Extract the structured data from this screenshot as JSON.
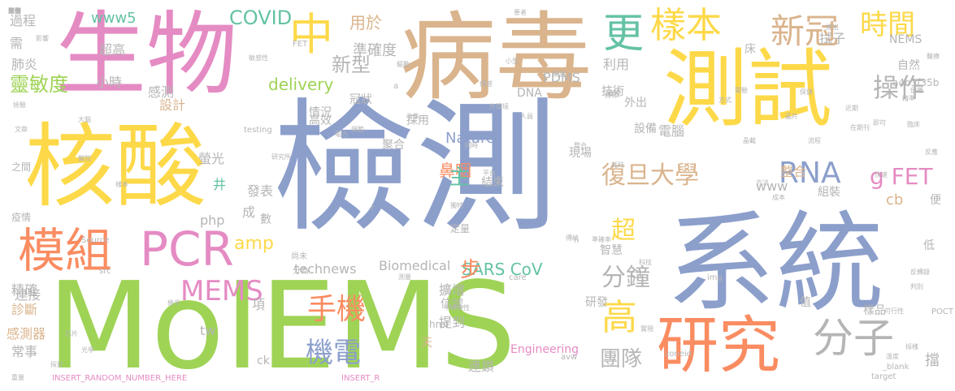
{
  "palette": {
    "green": "#9fd356",
    "blue": "#8c9fcb",
    "pink": "#e58bc3",
    "tan": "#dab48d",
    "yellow": "#fdd949",
    "orange": "#fa8c61",
    "teal": "#64c2a5",
    "grey": "#b5b5b5"
  },
  "words": [
    {
      "text": "MoIEMS",
      "color": "green"
    },
    {
      "text": "檢測",
      "color": "blue"
    },
    {
      "text": "系統",
      "color": "blue"
    },
    {
      "text": "病毒",
      "color": "tan"
    },
    {
      "text": "生物",
      "color": "pink"
    },
    {
      "text": "核酸",
      "color": "yellow"
    },
    {
      "text": "測試",
      "color": "yellow"
    },
    {
      "text": "研究",
      "color": "orange"
    },
    {
      "text": "模組",
      "color": "orange"
    },
    {
      "text": "PCR",
      "color": "pink"
    },
    {
      "text": "中",
      "color": "yellow"
    },
    {
      "text": "更",
      "color": "teal"
    },
    {
      "text": "樣本",
      "color": "yellow"
    },
    {
      "text": "新冠",
      "color": "tan"
    },
    {
      "text": "時間",
      "color": "yellow"
    },
    {
      "text": "分子",
      "color": "grey"
    },
    {
      "text": "高",
      "color": "yellow"
    },
    {
      "text": "MEMS",
      "color": "pink"
    },
    {
      "text": "手機",
      "color": "orange"
    },
    {
      "text": "機電",
      "color": "blue"
    },
    {
      "text": "復旦大學",
      "color": "tan"
    },
    {
      "text": "RNA",
      "color": "blue"
    },
    {
      "text": "g FET",
      "color": "pink"
    },
    {
      "text": "分鐘",
      "color": "grey"
    },
    {
      "text": "操作",
      "color": "grey"
    },
    {
      "text": "靈敏度",
      "color": "green"
    },
    {
      "text": "新型",
      "color": "grey"
    },
    {
      "text": "準確度",
      "color": "grey"
    },
    {
      "text": "用於",
      "color": "tan"
    },
    {
      "text": "COVID",
      "color": "teal"
    },
    {
      "text": "www5",
      "color": "teal"
    },
    {
      "text": "delivery",
      "color": "green"
    },
    {
      "text": "團隊",
      "color": "grey"
    },
    {
      "text": "超",
      "color": "yellow"
    },
    {
      "text": "SARS CoV",
      "color": "teal"
    },
    {
      "text": "Nature",
      "color": "blue"
    },
    {
      "text": "Biomedical",
      "color": "grey"
    },
    {
      "text": "technews",
      "color": "grey"
    },
    {
      "text": "amp",
      "color": "yellow"
    },
    {
      "text": "鼻咽",
      "color": "orange"
    },
    {
      "text": "主",
      "color": "teal"
    },
    {
      "text": "步",
      "color": "orange"
    },
    {
      "text": "tw",
      "color": "grey"
    },
    {
      "text": "www",
      "color": "grey"
    },
    {
      "text": "php",
      "color": "grey"
    },
    {
      "text": "cb",
      "color": "tan"
    },
    {
      "text": "整合",
      "color": "tan"
    },
    {
      "text": "拭子",
      "color": "grey"
    },
    {
      "text": "PDMS",
      "color": "grey"
    },
    {
      "text": "利用",
      "color": "grey"
    },
    {
      "text": "小時",
      "color": "grey"
    },
    {
      "text": "感測",
      "color": "grey"
    },
    {
      "text": "設計",
      "color": "tan"
    },
    {
      "text": "精確",
      "color": "grey"
    },
    {
      "text": "診斷",
      "color": "tan"
    },
    {
      "text": "連接",
      "color": "grey"
    },
    {
      "text": "感測器",
      "color": "tan"
    },
    {
      "text": "Engineering",
      "color": "pink"
    },
    {
      "text": "電腦",
      "color": "grey"
    },
    {
      "text": "技術",
      "color": "grey"
    },
    {
      "text": "現場",
      "color": "grey"
    },
    {
      "text": "設備",
      "color": "grey"
    },
    {
      "text": "結束",
      "color": "grey"
    },
    {
      "text": "信號",
      "color": "grey"
    },
    {
      "text": "擴增",
      "color": "grey"
    },
    {
      "text": "提到",
      "color": "grey"
    },
    {
      "text": "研發",
      "color": "grey"
    },
    {
      "text": "組裝",
      "color": "grey"
    },
    {
      "text": "樣品",
      "color": "grey"
    },
    {
      "text": "自然",
      "color": "grey"
    },
    {
      "text": "NEMS",
      "color": "grey"
    },
    {
      "text": "a4b3f35b",
      "color": "grey"
    },
    {
      "text": "情況",
      "color": "grey"
    },
    {
      "text": "高效",
      "color": "grey"
    },
    {
      "text": "冠狀",
      "color": "grey"
    },
    {
      "text": "採用",
      "color": "grey"
    },
    {
      "text": "聚合",
      "color": "grey"
    },
    {
      "text": "DNA",
      "color": "grey"
    },
    {
      "text": "Ct",
      "color": "grey"
    },
    {
      "text": "過程",
      "color": "grey"
    },
    {
      "text": "需",
      "color": "grey"
    },
    {
      "text": "超高",
      "color": "grey"
    },
    {
      "text": "肺炎",
      "color": "grey"
    },
    {
      "text": "之間",
      "color": "grey"
    },
    {
      "text": "疫情",
      "color": "grey"
    },
    {
      "text": "常事",
      "color": "grey"
    },
    {
      "text": "井",
      "color": "teal"
    },
    {
      "text": "螢光",
      "color": "grey"
    },
    {
      "text": "發表",
      "color": "grey"
    },
    {
      "text": "成",
      "color": "grey"
    },
    {
      "text": "數",
      "color": "grey"
    },
    {
      "text": "床",
      "color": "grey"
    },
    {
      "text": "外出",
      "color": "grey"
    },
    {
      "text": "智慧",
      "color": "grey"
    },
    {
      "text": "值",
      "color": "grey"
    },
    {
      "text": "便",
      "color": "grey"
    },
    {
      "text": "低",
      "color": "grey"
    },
    {
      "text": "天",
      "color": "tan"
    },
    {
      "text": "項",
      "color": "grey"
    },
    {
      "text": "ck",
      "color": "grey"
    },
    {
      "text": "連鎖",
      "color": "grey"
    },
    {
      "text": "擋",
      "color": "grey"
    },
    {
      "text": "INSERT_RANDOM_NUMBER_HERE",
      "color": "pink"
    },
    {
      "text": "INSERT_R",
      "color": "pink"
    },
    {
      "text": "href",
      "color": "grey"
    },
    {
      "text": "定量",
      "color": "grey"
    },
    {
      "text": "尚未",
      "color": "grey"
    },
    {
      "text": "分為",
      "color": "grey"
    },
    {
      "text": "testing",
      "color": "grey"
    },
    {
      "text": "Source",
      "color": "grey"
    },
    {
      "text": "zoneid",
      "color": "grey"
    },
    {
      "text": "target",
      "color": "grey"
    },
    {
      "text": "_blank",
      "color": "grey"
    },
    {
      "text": "POCT",
      "color": "grey"
    },
    {
      "text": "img",
      "color": "grey"
    },
    {
      "text": "care",
      "color": "grey"
    },
    {
      "text": "src",
      "color": "grey"
    },
    {
      "text": "avw",
      "color": "grey"
    },
    {
      "text": "FET",
      "color": "grey"
    },
    {
      "text": "n",
      "color": "grey"
    },
    {
      "text": "r",
      "color": "grey"
    },
    {
      "text": "a",
      "color": "grey"
    },
    {
      "text": "重量",
      "color": "grey"
    },
    {
      "text": "臨床",
      "color": "grey"
    },
    {
      "text": "精準",
      "color": "grey"
    },
    {
      "text": "方法",
      "color": "grey"
    },
    {
      "text": "微型",
      "color": "grey"
    },
    {
      "text": "影響",
      "color": "grey"
    },
    {
      "text": "收集",
      "color": "grey"
    },
    {
      "text": "準確率",
      "color": "grey"
    },
    {
      "text": "傳統",
      "color": "grey"
    },
    {
      "text": "成本",
      "color": "grey"
    },
    {
      "text": "小型",
      "color": "grey"
    },
    {
      "text": "患者",
      "color": "grey"
    },
    {
      "text": "轉化",
      "color": "grey"
    },
    {
      "text": "反應",
      "color": "grey"
    },
    {
      "text": "流程",
      "color": "grey"
    },
    {
      "text": "人員",
      "color": "grey"
    },
    {
      "text": "醫療",
      "color": "grey"
    },
    {
      "text": "可行性",
      "color": "grey"
    },
    {
      "text": "即可",
      "color": "grey"
    },
    {
      "text": "便攜",
      "color": "grey"
    },
    {
      "text": "晶片",
      "color": "grey"
    },
    {
      "text": "快速",
      "color": "grey"
    },
    {
      "text": "傳感",
      "color": "grey"
    },
    {
      "text": "開發",
      "color": "grey"
    },
    {
      "text": "實驗",
      "color": "grey"
    },
    {
      "text": "平台",
      "color": "grey"
    },
    {
      "text": "整合",
      "color": "grey"
    },
    {
      "text": "採樣",
      "color": "grey"
    },
    {
      "text": "推出",
      "color": "grey"
    },
    {
      "text": "醫院",
      "color": "grey"
    },
    {
      "text": "大腦",
      "color": "grey"
    },
    {
      "text": "方式",
      "color": "grey"
    },
    {
      "text": "近期",
      "color": "grey"
    },
    {
      "text": "在期刊",
      "color": "grey"
    },
    {
      "text": "文章",
      "color": "grey"
    },
    {
      "text": "檢驗",
      "color": "grey"
    },
    {
      "text": "保健",
      "color": "grey"
    },
    {
      "text": "敏感性",
      "color": "grey"
    },
    {
      "text": "電力",
      "color": "grey"
    },
    {
      "text": "同時",
      "color": "grey"
    },
    {
      "text": "研究所",
      "color": "grey"
    },
    {
      "text": "幾乎",
      "color": "grey"
    },
    {
      "text": "光學",
      "color": "grey"
    },
    {
      "text": "樣本",
      "color": "grey"
    },
    {
      "text": "測量",
      "color": "grey"
    },
    {
      "text": "不確定性",
      "color": "grey"
    },
    {
      "text": "科技",
      "color": "grey"
    },
    {
      "text": "外環境",
      "color": "grey"
    },
    {
      "text": "獨特",
      "color": "grey"
    },
    {
      "text": "耗時",
      "color": "grey"
    },
    {
      "text": "驅動",
      "color": "grey"
    },
    {
      "text": "規範",
      "color": "grey"
    },
    {
      "text": "溫度",
      "color": "grey"
    },
    {
      "text": "反轉錄",
      "color": "grey"
    },
    {
      "text": "實現",
      "color": "grey"
    },
    {
      "text": "晶載",
      "color": "grey"
    },
    {
      "text": "芯片",
      "color": "grey"
    },
    {
      "text": "探針",
      "color": "grey"
    },
    {
      "text": "判別",
      "color": "grey"
    },
    {
      "text": "間接",
      "color": "grey"
    },
    {
      "text": "更換",
      "color": "grey"
    },
    {
      "text": "工程",
      "color": "grey"
    },
    {
      "text": "設置",
      "color": "grey"
    },
    {
      "text": "交叉",
      "color": "grey"
    },
    {
      "text": "十億",
      "color": "grey"
    }
  ]
}
